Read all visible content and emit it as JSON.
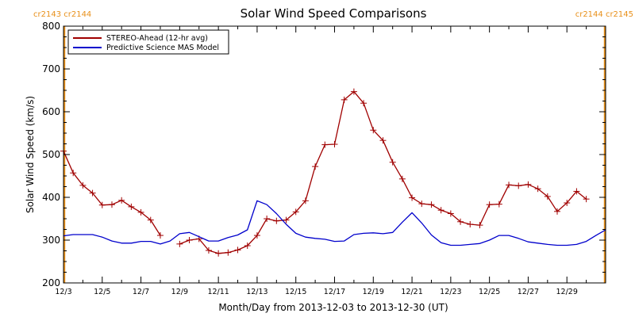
{
  "chart_data": {
    "type": "line",
    "title": "Solar Wind Speed Comparisons",
    "xlabel": "Month/Day from 2013-12-03 to 2013-12-30 (UT)",
    "ylabel": "Solar Wind Speed (km/s)",
    "xlim": [
      "2013-12-03",
      "2013-12-31"
    ],
    "ylim": [
      200,
      800
    ],
    "x_unit": "day of December 2013",
    "xlim_days": [
      3,
      31
    ],
    "x_ticks": [
      {
        "value": 3,
        "label": "12/3"
      },
      {
        "value": 5,
        "label": "12/5"
      },
      {
        "value": 7,
        "label": "12/7"
      },
      {
        "value": 9,
        "label": "12/9"
      },
      {
        "value": 11,
        "label": "12/11"
      },
      {
        "value": 13,
        "label": "12/13"
      },
      {
        "value": 15,
        "label": "12/15"
      },
      {
        "value": 17,
        "label": "12/17"
      },
      {
        "value": 19,
        "label": "12/19"
      },
      {
        "value": 21,
        "label": "12/21"
      },
      {
        "value": 23,
        "label": "12/23"
      },
      {
        "value": 25,
        "label": "12/25"
      },
      {
        "value": 27,
        "label": "12/27"
      },
      {
        "value": 29,
        "label": "12/29"
      }
    ],
    "y_ticks": [
      200,
      300,
      400,
      500,
      600,
      700,
      800
    ],
    "grid": false,
    "legend_position": "top-left",
    "carrington_markers": [
      {
        "day": 3.05,
        "label": "cr2143 cr2144",
        "side": "left",
        "color": "#e8901a"
      },
      {
        "day": 30.95,
        "label": "cr2144 cr2145",
        "side": "right",
        "color": "#e8901a"
      }
    ],
    "series": [
      {
        "name": "STEREO-Ahead (12-hr avg)",
        "color": "#a00000",
        "marker": "plus",
        "segments": [
          [
            {
              "x": 3.0,
              "y": 508
            },
            {
              "x": 3.5,
              "y": 457
            },
            {
              "x": 4.0,
              "y": 428
            },
            {
              "x": 4.5,
              "y": 410
            },
            {
              "x": 5.0,
              "y": 382
            },
            {
              "x": 5.5,
              "y": 383
            },
            {
              "x": 6.0,
              "y": 393
            },
            {
              "x": 6.5,
              "y": 378
            },
            {
              "x": 7.0,
              "y": 365
            },
            {
              "x": 7.5,
              "y": 347
            },
            {
              "x": 8.0,
              "y": 311
            }
          ],
          [
            {
              "x": 9.0,
              "y": 291
            },
            {
              "x": 9.5,
              "y": 300
            },
            {
              "x": 10.0,
              "y": 303
            },
            {
              "x": 10.5,
              "y": 276
            },
            {
              "x": 11.0,
              "y": 269
            },
            {
              "x": 11.5,
              "y": 271
            },
            {
              "x": 12.0,
              "y": 277
            },
            {
              "x": 12.5,
              "y": 287
            },
            {
              "x": 13.0,
              "y": 311
            },
            {
              "x": 13.5,
              "y": 350
            },
            {
              "x": 14.0,
              "y": 345
            },
            {
              "x": 14.5,
              "y": 347
            },
            {
              "x": 15.0,
              "y": 366
            },
            {
              "x": 15.5,
              "y": 392
            },
            {
              "x": 16.0,
              "y": 472
            },
            {
              "x": 16.5,
              "y": 523
            },
            {
              "x": 17.0,
              "y": 524
            },
            {
              "x": 17.5,
              "y": 628
            },
            {
              "x": 18.0,
              "y": 647
            },
            {
              "x": 18.5,
              "y": 620
            },
            {
              "x": 19.0,
              "y": 557
            },
            {
              "x": 19.5,
              "y": 533
            },
            {
              "x": 20.0,
              "y": 482
            },
            {
              "x": 20.5,
              "y": 443
            },
            {
              "x": 21.0,
              "y": 399
            },
            {
              "x": 21.5,
              "y": 385
            },
            {
              "x": 22.0,
              "y": 383
            },
            {
              "x": 22.5,
              "y": 370
            },
            {
              "x": 23.0,
              "y": 362
            },
            {
              "x": 23.5,
              "y": 343
            },
            {
              "x": 24.0,
              "y": 337
            },
            {
              "x": 24.5,
              "y": 335
            },
            {
              "x": 25.0,
              "y": 383
            },
            {
              "x": 25.5,
              "y": 384
            },
            {
              "x": 26.0,
              "y": 429
            },
            {
              "x": 26.5,
              "y": 427
            },
            {
              "x": 27.0,
              "y": 430
            },
            {
              "x": 27.5,
              "y": 420
            },
            {
              "x": 28.0,
              "y": 402
            },
            {
              "x": 28.5,
              "y": 367
            },
            {
              "x": 29.0,
              "y": 387
            },
            {
              "x": 29.5,
              "y": 414
            },
            {
              "x": 30.0,
              "y": 396
            }
          ]
        ]
      },
      {
        "name": "Predictive Science MAS Model",
        "color": "#0000cc",
        "marker": "none",
        "segments": [
          [
            {
              "x": 3.0,
              "y": 310
            },
            {
              "x": 3.5,
              "y": 313
            },
            {
              "x": 4.0,
              "y": 313
            },
            {
              "x": 4.5,
              "y": 313
            },
            {
              "x": 5.0,
              "y": 307
            },
            {
              "x": 5.5,
              "y": 298
            },
            {
              "x": 6.0,
              "y": 293
            },
            {
              "x": 6.5,
              "y": 293
            },
            {
              "x": 7.0,
              "y": 297
            },
            {
              "x": 7.5,
              "y": 297
            },
            {
              "x": 8.0,
              "y": 291
            },
            {
              "x": 8.5,
              "y": 298
            },
            {
              "x": 9.0,
              "y": 315
            },
            {
              "x": 9.5,
              "y": 318
            },
            {
              "x": 10.0,
              "y": 308
            },
            {
              "x": 10.5,
              "y": 298
            },
            {
              "x": 11.0,
              "y": 298
            },
            {
              "x": 11.5,
              "y": 306
            },
            {
              "x": 12.0,
              "y": 312
            },
            {
              "x": 12.5,
              "y": 324
            },
            {
              "x": 13.0,
              "y": 392
            },
            {
              "x": 13.5,
              "y": 383
            },
            {
              "x": 14.0,
              "y": 362
            },
            {
              "x": 14.5,
              "y": 337
            },
            {
              "x": 15.0,
              "y": 316
            },
            {
              "x": 15.5,
              "y": 307
            },
            {
              "x": 16.0,
              "y": 304
            },
            {
              "x": 16.5,
              "y": 302
            },
            {
              "x": 17.0,
              "y": 297
            },
            {
              "x": 17.5,
              "y": 298
            },
            {
              "x": 18.0,
              "y": 313
            },
            {
              "x": 18.5,
              "y": 316
            },
            {
              "x": 19.0,
              "y": 317
            },
            {
              "x": 19.5,
              "y": 315
            },
            {
              "x": 20.0,
              "y": 318
            },
            {
              "x": 20.5,
              "y": 342
            },
            {
              "x": 21.0,
              "y": 364
            },
            {
              "x": 21.5,
              "y": 340
            },
            {
              "x": 22.0,
              "y": 312
            },
            {
              "x": 22.5,
              "y": 294
            },
            {
              "x": 23.0,
              "y": 288
            },
            {
              "x": 23.5,
              "y": 288
            },
            {
              "x": 24.0,
              "y": 290
            },
            {
              "x": 24.5,
              "y": 292
            },
            {
              "x": 25.0,
              "y": 300
            },
            {
              "x": 25.5,
              "y": 311
            },
            {
              "x": 26.0,
              "y": 311
            },
            {
              "x": 26.5,
              "y": 304
            },
            {
              "x": 27.0,
              "y": 296
            },
            {
              "x": 27.5,
              "y": 293
            },
            {
              "x": 28.0,
              "y": 290
            },
            {
              "x": 28.5,
              "y": 288
            },
            {
              "x": 29.0,
              "y": 288
            },
            {
              "x": 29.5,
              "y": 290
            },
            {
              "x": 30.0,
              "y": 297
            },
            {
              "x": 30.5,
              "y": 311
            },
            {
              "x": 31.0,
              "y": 324
            }
          ]
        ]
      }
    ]
  }
}
